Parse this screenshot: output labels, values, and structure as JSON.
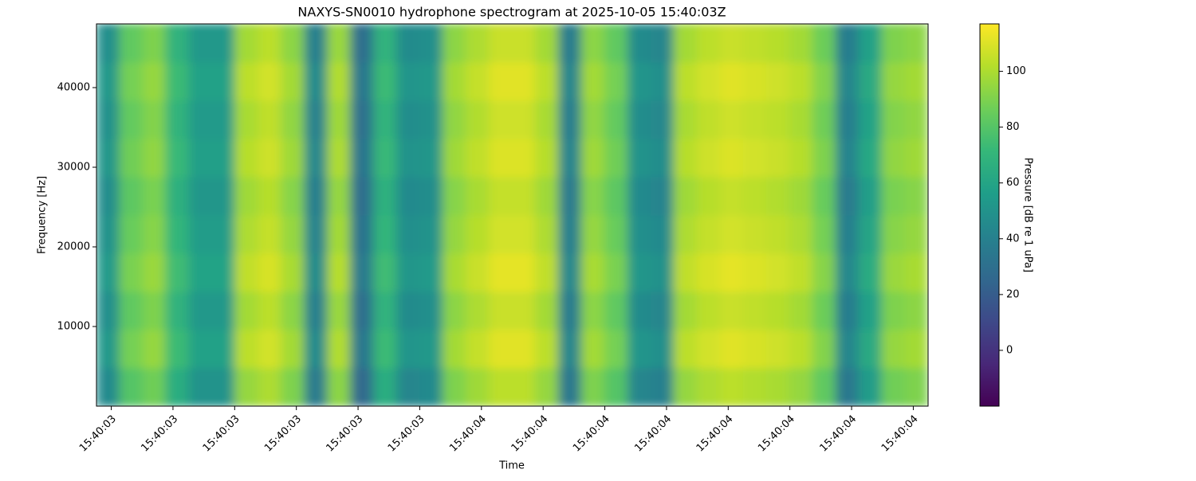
{
  "chart_data": {
    "type": "heatmap",
    "title": "NAXYS-SN0010 hydrophone spectrogram at 2025-10-05 15:40:03Z",
    "xlabel": "Time",
    "ylabel": "Frequency [Hz]",
    "colorbar_label": "Pressure [dB re 1 uPa]",
    "colormap": "viridis",
    "xlim": [
      3.376,
      4.724
    ],
    "xticks": [
      {
        "value": 3.4,
        "label": "15:40:03"
      },
      {
        "value": 3.5,
        "label": "15:40:03"
      },
      {
        "value": 3.6,
        "label": "15:40:03"
      },
      {
        "value": 3.7,
        "label": "15:40:03"
      },
      {
        "value": 3.8,
        "label": "15:40:03"
      },
      {
        "value": 3.9,
        "label": "15:40:03"
      },
      {
        "value": 4.0,
        "label": "15:40:04"
      },
      {
        "value": 4.1,
        "label": "15:40:04"
      },
      {
        "value": 4.2,
        "label": "15:40:04"
      },
      {
        "value": 4.3,
        "label": "15:40:04"
      },
      {
        "value": 4.4,
        "label": "15:40:04"
      },
      {
        "value": 4.5,
        "label": "15:40:04"
      },
      {
        "value": 4.6,
        "label": "15:40:04"
      },
      {
        "value": 4.7,
        "label": "15:40:04"
      }
    ],
    "ylim": [
      0,
      48000
    ],
    "yticks": [
      10000,
      20000,
      30000,
      40000
    ],
    "zlim": [
      -20,
      117
    ],
    "zticks": [
      0,
      20,
      40,
      60,
      80,
      100
    ],
    "z": [
      [
        45,
        80,
        87,
        65,
        50,
        50,
        95,
        100,
        90,
        37,
        93,
        27,
        65,
        43,
        45,
        90,
        97,
        103,
        103,
        95,
        35,
        90,
        80,
        43,
        40,
        95,
        100,
        103,
        101,
        99,
        95,
        83,
        35,
        55,
        87,
        90
      ],
      [
        53,
        88,
        95,
        73,
        58,
        58,
        103,
        108,
        98,
        45,
        101,
        35,
        73,
        51,
        53,
        98,
        105,
        111,
        111,
        103,
        43,
        98,
        88,
        51,
        48,
        103,
        108,
        111,
        109,
        107,
        103,
        91,
        43,
        63,
        95,
        98
      ],
      [
        48,
        83,
        90,
        68,
        53,
        53,
        98,
        103,
        93,
        40,
        96,
        30,
        68,
        46,
        48,
        93,
        100,
        106,
        106,
        98,
        38,
        93,
        83,
        46,
        43,
        98,
        103,
        106,
        104,
        102,
        98,
        86,
        38,
        58,
        90,
        93
      ],
      [
        54,
        89,
        96,
        74,
        59,
        59,
        104,
        109,
        99,
        46,
        102,
        36,
        74,
        52,
        54,
        99,
        106,
        112,
        112,
        104,
        44,
        99,
        89,
        52,
        49,
        104,
        109,
        112,
        110,
        108,
        104,
        92,
        44,
        64,
        96,
        99
      ],
      [
        50,
        85,
        92,
        70,
        55,
        55,
        100,
        105,
        95,
        42,
        98,
        32,
        70,
        48,
        50,
        95,
        102,
        108,
        108,
        100,
        40,
        95,
        85,
        48,
        45,
        100,
        105,
        108,
        106,
        104,
        100,
        88,
        40,
        60,
        92,
        95
      ],
      [
        47,
        82,
        89,
        67,
        52,
        52,
        97,
        102,
        92,
        39,
        95,
        29,
        67,
        45,
        47,
        92,
        99,
        105,
        105,
        97,
        37,
        92,
        82,
        45,
        42,
        97,
        102,
        105,
        103,
        101,
        97,
        85,
        37,
        57,
        89,
        92
      ],
      [
        52,
        87,
        94,
        72,
        57,
        57,
        102,
        107,
        97,
        44,
        100,
        34,
        72,
        50,
        52,
        97,
        104,
        110,
        110,
        102,
        42,
        97,
        87,
        50,
        47,
        102,
        107,
        110,
        108,
        106,
        102,
        90,
        42,
        62,
        94,
        97
      ],
      [
        49,
        84,
        91,
        69,
        54,
        54,
        99,
        104,
        94,
        41,
        97,
        31,
        69,
        47,
        49,
        94,
        101,
        107,
        107,
        99,
        39,
        94,
        84,
        47,
        44,
        99,
        104,
        107,
        105,
        103,
        99,
        87,
        39,
        59,
        91,
        94
      ],
      [
        53,
        88,
        95,
        73,
        58,
        58,
        103,
        108,
        98,
        45,
        101,
        35,
        73,
        51,
        53,
        98,
        105,
        111,
        111,
        103,
        43,
        98,
        88,
        51,
        48,
        103,
        108,
        111,
        109,
        107,
        103,
        91,
        43,
        63,
        95,
        98
      ],
      [
        48,
        83,
        90,
        68,
        53,
        53,
        98,
        103,
        93,
        40,
        96,
        30,
        68,
        46,
        48,
        93,
        100,
        106,
        106,
        98,
        38,
        93,
        83,
        46,
        43,
        98,
        103,
        106,
        104,
        102,
        98,
        86,
        38,
        58,
        90,
        93
      ]
    ]
  }
}
